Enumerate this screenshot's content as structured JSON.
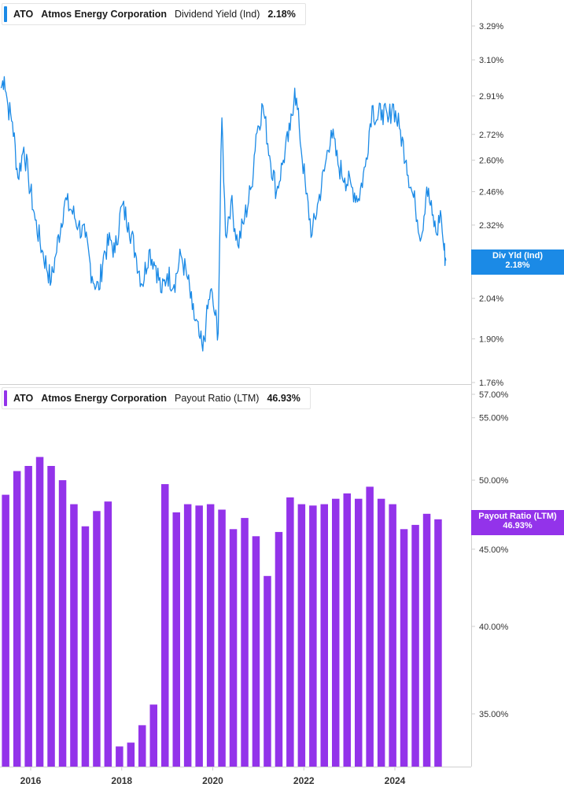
{
  "colors": {
    "yield_line": "#1b8ae6",
    "payout_bars": "#9333ea",
    "axis": "#cfcfcf",
    "text": "#333333"
  },
  "top_panel": {
    "legend": {
      "ticker": "ATO",
      "company": "Atmos Energy Corporation",
      "metric": "Dividend Yield (Ind)",
      "value": "2.18%"
    },
    "flag": {
      "label": "Div Yld (Ind)",
      "value": "2.18%"
    }
  },
  "bottom_panel": {
    "legend": {
      "ticker": "ATO",
      "company": "Atmos Energy Corporation",
      "metric": "Payout Ratio (LTM)",
      "value": "46.93%"
    },
    "flag": {
      "label": "Payout Ratio (LTM)",
      "value": "46.93%"
    }
  },
  "chart_data": [
    {
      "type": "line",
      "title": "",
      "xlabel": "",
      "ylabel": "",
      "y_scale": "log",
      "ylim": [
        1.76,
        3.45
      ],
      "y_ticks": [
        "3.29%",
        "3.10%",
        "2.91%",
        "2.72%",
        "2.60%",
        "2.46%",
        "2.32%",
        "2.18%",
        "2.04%",
        "1.90%",
        "1.76%"
      ],
      "y_tick_values": [
        3.29,
        3.1,
        2.91,
        2.72,
        2.6,
        2.46,
        2.32,
        2.18,
        2.04,
        1.9,
        1.76
      ],
      "x_ticks": [
        "2016",
        "2018",
        "2020",
        "2022",
        "2024"
      ],
      "x_tick_values": [
        2016.0,
        2018.0,
        2020.0,
        2022.0,
        2024.0
      ],
      "xlim": [
        2015.35,
        2025.2
      ],
      "series": [
        {
          "points": [
            [
              2015.35,
              2.95
            ],
            [
              2015.42,
              3.01
            ],
            [
              2015.5,
              2.86
            ],
            [
              2015.6,
              2.78
            ],
            [
              2015.72,
              2.52
            ],
            [
              2015.85,
              2.66
            ],
            [
              2015.95,
              2.52
            ],
            [
              2016.1,
              2.34
            ],
            [
              2016.25,
              2.22
            ],
            [
              2016.45,
              2.1
            ],
            [
              2016.55,
              2.2
            ],
            [
              2016.75,
              2.42
            ],
            [
              2016.9,
              2.38
            ],
            [
              2017.05,
              2.32
            ],
            [
              2017.2,
              2.27
            ],
            [
              2017.35,
              2.12
            ],
            [
              2017.5,
              2.07
            ],
            [
              2017.6,
              2.2
            ],
            [
              2017.75,
              2.26
            ],
            [
              2017.85,
              2.21
            ],
            [
              2018.0,
              2.4
            ],
            [
              2018.15,
              2.33
            ],
            [
              2018.3,
              2.21
            ],
            [
              2018.45,
              2.09
            ],
            [
              2018.6,
              2.22
            ],
            [
              2018.75,
              2.16
            ],
            [
              2018.88,
              2.06
            ],
            [
              2019.0,
              2.13
            ],
            [
              2019.15,
              2.09
            ],
            [
              2019.3,
              2.2
            ],
            [
              2019.45,
              2.11
            ],
            [
              2019.55,
              2.0
            ],
            [
              2019.7,
              1.91
            ],
            [
              2019.78,
              1.86
            ],
            [
              2019.85,
              1.95
            ],
            [
              2019.95,
              2.07
            ],
            [
              2020.05,
              1.98
            ],
            [
              2020.12,
              1.92
            ],
            [
              2020.2,
              2.8
            ],
            [
              2020.28,
              2.28
            ],
            [
              2020.4,
              2.42
            ],
            [
              2020.55,
              2.24
            ],
            [
              2020.7,
              2.35
            ],
            [
              2020.85,
              2.48
            ],
            [
              2020.95,
              2.72
            ],
            [
              2021.1,
              2.86
            ],
            [
              2021.25,
              2.62
            ],
            [
              2021.4,
              2.46
            ],
            [
              2021.55,
              2.6
            ],
            [
              2021.7,
              2.74
            ],
            [
              2021.8,
              2.95
            ],
            [
              2021.9,
              2.75
            ],
            [
              2022.05,
              2.45
            ],
            [
              2022.18,
              2.28
            ],
            [
              2022.32,
              2.42
            ],
            [
              2022.45,
              2.55
            ],
            [
              2022.6,
              2.74
            ],
            [
              2022.75,
              2.58
            ],
            [
              2022.9,
              2.52
            ],
            [
              2023.05,
              2.48
            ],
            [
              2023.2,
              2.43
            ],
            [
              2023.35,
              2.57
            ],
            [
              2023.5,
              2.86
            ],
            [
              2023.6,
              2.79
            ],
            [
              2023.72,
              2.84
            ],
            [
              2023.85,
              2.78
            ],
            [
              2023.95,
              2.87
            ],
            [
              2024.1,
              2.75
            ],
            [
              2024.25,
              2.6
            ],
            [
              2024.35,
              2.48
            ],
            [
              2024.45,
              2.4
            ],
            [
              2024.58,
              2.27
            ],
            [
              2024.7,
              2.48
            ],
            [
              2024.82,
              2.36
            ],
            [
              2024.92,
              2.28
            ],
            [
              2025.0,
              2.38
            ],
            [
              2025.08,
              2.22
            ],
            [
              2025.12,
              2.18
            ]
          ]
        }
      ]
    },
    {
      "type": "bar",
      "title": "",
      "xlabel": "",
      "ylabel": "",
      "y_scale": "log",
      "ylim": [
        32.7,
        57.3
      ],
      "y_ticks": [
        "57.00%",
        "55.00%",
        "50.00%",
        "45.00%",
        "40.00%",
        "35.00%"
      ],
      "y_tick_values": [
        57.0,
        55.0,
        50.0,
        45.0,
        40.0,
        35.0
      ],
      "x_ticks": [
        "2016",
        "2018",
        "2020",
        "2022",
        "2024"
      ],
      "x_tick_values": [
        2016.0,
        2018.0,
        2020.0,
        2022.0,
        2024.0
      ],
      "xlim": [
        2015.35,
        2025.2
      ],
      "x": [
        2015.45,
        2015.7,
        2015.95,
        2016.2,
        2016.45,
        2016.7,
        2016.95,
        2017.2,
        2017.45,
        2017.7,
        2017.95,
        2018.2,
        2018.45,
        2018.7,
        2018.95,
        2019.2,
        2019.45,
        2019.7,
        2019.95,
        2020.2,
        2020.45,
        2020.7,
        2020.95,
        2021.2,
        2021.45,
        2021.7,
        2021.95,
        2022.2,
        2022.45,
        2022.7,
        2022.95,
        2023.2,
        2023.45,
        2023.7,
        2023.95,
        2024.2,
        2024.45,
        2024.7,
        2024.95
      ],
      "series": [
        {
          "values": [
            48.9,
            50.7,
            51.1,
            51.8,
            51.1,
            50.0,
            48.2,
            46.6,
            47.7,
            48.4,
            33.3,
            33.5,
            34.4,
            35.5,
            49.7,
            47.6,
            48.2,
            48.1,
            48.2,
            47.8,
            46.4,
            47.2,
            45.9,
            43.2,
            46.2,
            48.7,
            48.2,
            48.1,
            48.2,
            48.6,
            49.0,
            48.6,
            49.5,
            48.6,
            48.2,
            46.4,
            46.7,
            47.5,
            47.1
          ]
        }
      ]
    }
  ]
}
